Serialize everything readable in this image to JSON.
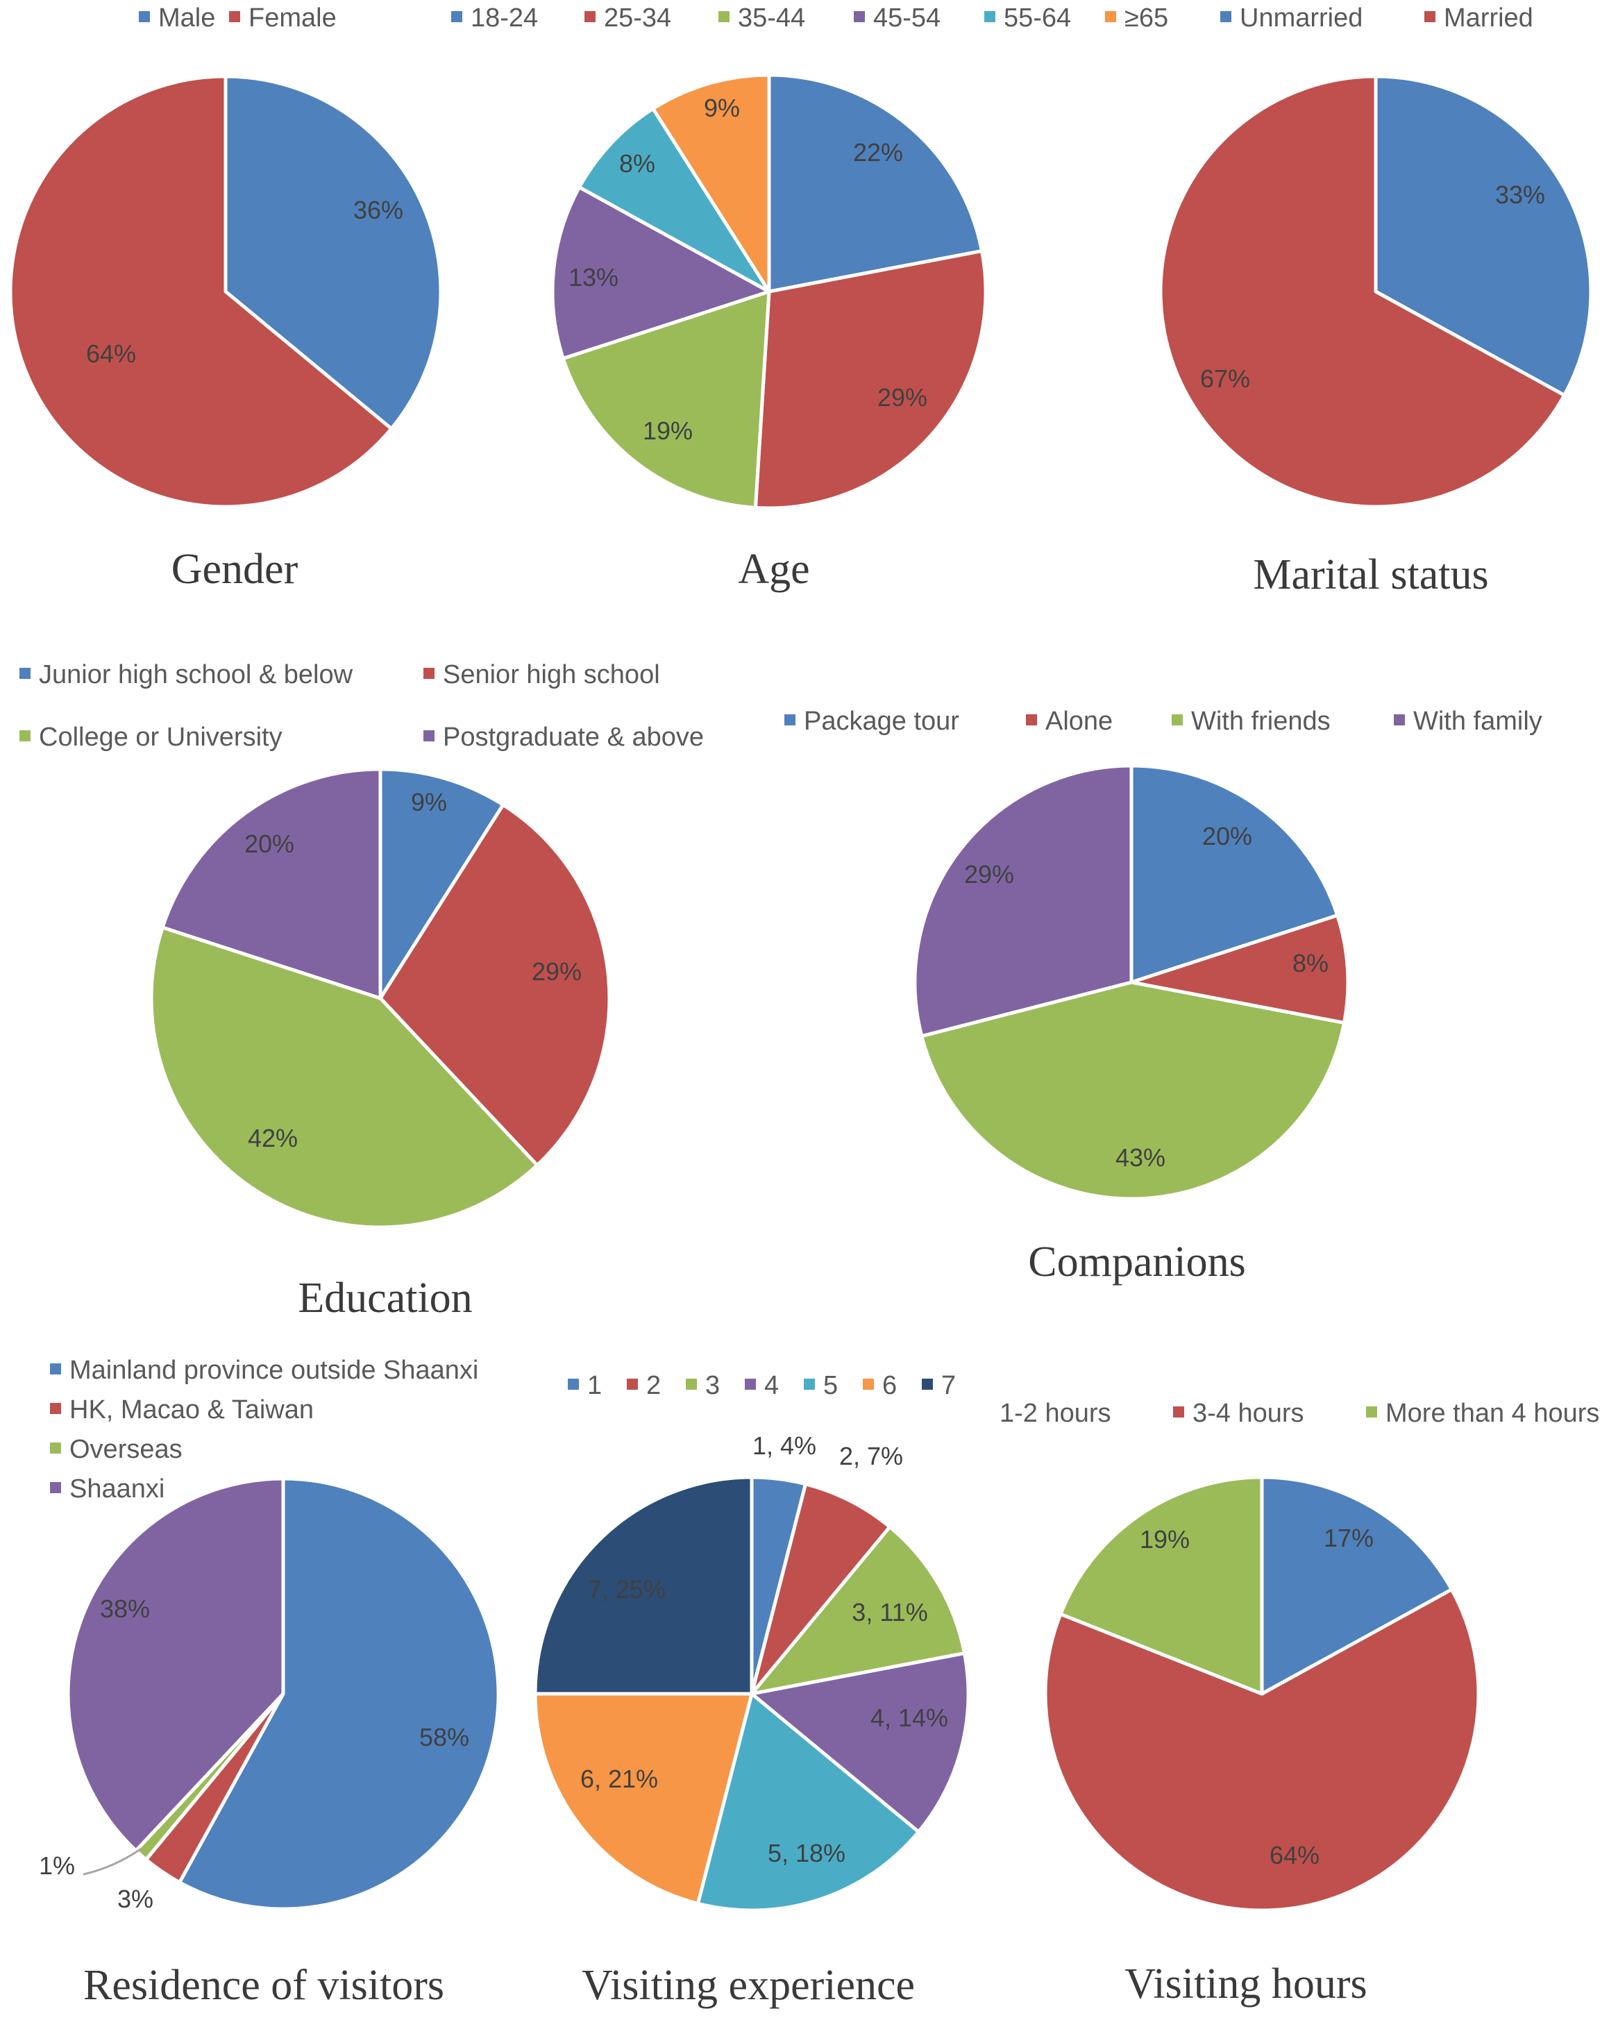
{
  "chart_data": [
    {
      "id": "gender",
      "type": "pie",
      "title": "Gender",
      "legend": [
        [
          "Male",
          "#4F81BD"
        ],
        [
          "Female",
          "#C0504D"
        ]
      ],
      "slices": [
        {
          "name": "Male",
          "value": 36,
          "label": "36%",
          "color": "#4F81BD"
        },
        {
          "name": "Female",
          "value": 64,
          "label": "64%",
          "color": "#C0504D"
        }
      ]
    },
    {
      "id": "age",
      "type": "pie",
      "title": "Age",
      "legend": [
        [
          "18-24",
          "#4F81BD"
        ],
        [
          "25-34",
          "#C0504D"
        ],
        [
          "35-44",
          "#9BBB59"
        ],
        [
          "45-54",
          "#8064A2"
        ],
        [
          "55-64",
          "#4BACC6"
        ],
        [
          "≥65",
          "#F79646"
        ]
      ],
      "slices": [
        {
          "name": "18-24",
          "value": 22,
          "label": "22%",
          "color": "#4F81BD"
        },
        {
          "name": "25-34",
          "value": 29,
          "label": "29%",
          "color": "#C0504D"
        },
        {
          "name": "35-44",
          "value": 19,
          "label": "19%",
          "color": "#9BBB59"
        },
        {
          "name": "45-54",
          "value": 13,
          "label": "13%",
          "color": "#8064A2"
        },
        {
          "name": "55-64",
          "value": 8,
          "label": "8%",
          "color": "#4BACC6"
        },
        {
          "name": "≥65",
          "value": 9,
          "label": "9%",
          "color": "#F79646"
        }
      ]
    },
    {
      "id": "marital",
      "type": "pie",
      "title": "Marital status",
      "legend": [
        [
          "Unmarried",
          "#4F81BD"
        ],
        [
          "Married",
          "#C0504D"
        ]
      ],
      "slices": [
        {
          "name": "Unmarried",
          "value": 33,
          "label": "33%",
          "color": "#4F81BD"
        },
        {
          "name": "Married",
          "value": 67,
          "label": "67%",
          "color": "#C0504D"
        }
      ]
    },
    {
      "id": "education",
      "type": "pie",
      "title": "Education",
      "legend": [
        [
          "Junior high school & below",
          "#4F81BD"
        ],
        [
          "Senior high school",
          "#C0504D"
        ],
        [
          "College or University",
          "#9BBB59"
        ],
        [
          "Postgraduate & above",
          "#8064A2"
        ]
      ],
      "slices": [
        {
          "name": "Junior high school & below",
          "value": 9,
          "label": "9%",
          "color": "#4F81BD"
        },
        {
          "name": "Senior high school",
          "value": 29,
          "label": "29%",
          "color": "#C0504D"
        },
        {
          "name": "College or University",
          "value": 42,
          "label": "42%",
          "color": "#9BBB59"
        },
        {
          "name": "Postgraduate & above",
          "value": 20,
          "label": "20%",
          "color": "#8064A2"
        }
      ]
    },
    {
      "id": "companions",
      "type": "pie",
      "title": "Companions",
      "legend": [
        [
          "Package tour",
          "#4F81BD"
        ],
        [
          "Alone",
          "#C0504D"
        ],
        [
          "With friends",
          "#9BBB59"
        ],
        [
          "With family",
          "#8064A2"
        ]
      ],
      "slices": [
        {
          "name": "Package tour",
          "value": 20,
          "label": "20%",
          "color": "#4F81BD"
        },
        {
          "name": "Alone",
          "value": 8,
          "label": "8%",
          "color": "#C0504D"
        },
        {
          "name": "With friends",
          "value": 43,
          "label": "43%",
          "color": "#9BBB59"
        },
        {
          "name": "With family",
          "value": 29,
          "label": "29%",
          "color": "#8064A2"
        }
      ]
    },
    {
      "id": "residence",
      "type": "pie",
      "title": "Residence of visitors",
      "legend": [
        [
          "Mainland province outside Shaanxi",
          "#4F81BD"
        ],
        [
          "HK, Macao & Taiwan",
          "#C0504D"
        ],
        [
          "Overseas",
          "#9BBB59"
        ],
        [
          "Shaanxi",
          "#8064A2"
        ]
      ],
      "slices": [
        {
          "name": "Mainland province outside Shaanxi",
          "value": 58,
          "label": "58%",
          "color": "#4F81BD"
        },
        {
          "name": "HK, Macao & Taiwan",
          "value": 3,
          "label": "3%",
          "color": "#C0504D"
        },
        {
          "name": "Overseas",
          "value": 1,
          "label": "1%",
          "color": "#9BBB59"
        },
        {
          "name": "Shaanxi",
          "value": 38,
          "label": "38%",
          "color": "#8064A2"
        }
      ]
    },
    {
      "id": "experience",
      "type": "pie",
      "title": "Visiting experience",
      "legend": [
        [
          "1",
          "#4F81BD"
        ],
        [
          "2",
          "#C0504D"
        ],
        [
          "3",
          "#9BBB59"
        ],
        [
          "4",
          "#8064A2"
        ],
        [
          "5",
          "#4BACC6"
        ],
        [
          "6",
          "#F79646"
        ],
        [
          "7",
          "#2C4D75"
        ]
      ],
      "slices": [
        {
          "name": "1",
          "value": 4,
          "label": "1, 4%",
          "color": "#4F81BD"
        },
        {
          "name": "2",
          "value": 7,
          "label": "2, 7%",
          "color": "#C0504D"
        },
        {
          "name": "3",
          "value": 11,
          "label": "3, 11%",
          "color": "#9BBB59"
        },
        {
          "name": "4",
          "value": 14,
          "label": "4, 14%",
          "color": "#8064A2"
        },
        {
          "name": "5",
          "value": 18,
          "label": "5, 18%",
          "color": "#4BACC6"
        },
        {
          "name": "6",
          "value": 21,
          "label": "6, 21%",
          "color": "#F79646"
        },
        {
          "name": "7",
          "value": 25,
          "label": "7, 25%",
          "color": "#2C4D75"
        }
      ]
    },
    {
      "id": "hours",
      "type": "pie",
      "title": "Visiting hours",
      "legend": [
        [
          "1-2 hours",
          "#4F81BD"
        ],
        [
          "3-4 hours",
          "#C0504D"
        ],
        [
          "More than 4 hours",
          "#9BBB59"
        ]
      ],
      "slices": [
        {
          "name": "1-2 hours",
          "value": 17,
          "label": "17%",
          "color": "#4F81BD"
        },
        {
          "name": "3-4 hours",
          "value": 64,
          "label": "64%",
          "color": "#C0504D"
        },
        {
          "name": "More than 4 hours",
          "value": 19,
          "label": "19%",
          "color": "#9BBB59"
        }
      ]
    }
  ]
}
